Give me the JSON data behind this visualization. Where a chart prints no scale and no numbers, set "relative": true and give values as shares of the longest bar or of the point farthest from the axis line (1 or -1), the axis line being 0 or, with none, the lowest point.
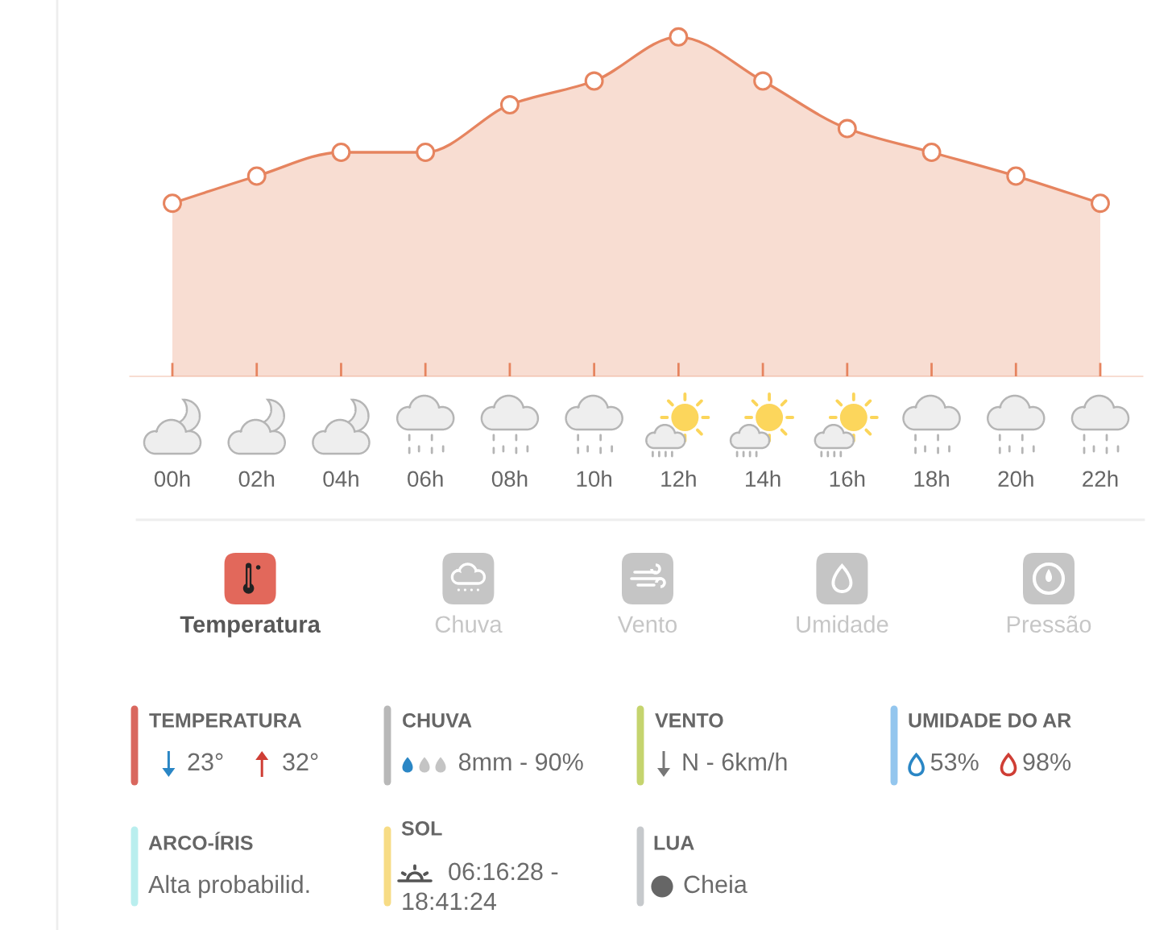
{
  "chart_data": [
    {
      "type": "area",
      "relative": true,
      "tick_labels": "x",
      "marker": "circle",
      "categories": [
        "00h",
        "02h",
        "04h",
        "06h",
        "08h",
        "10h",
        "12h",
        "14h",
        "16h",
        "18h",
        "20h",
        "22h"
      ],
      "series": [
        {
          "color": "#e6845f",
          "values": [
            0.51,
            0.59,
            0.66,
            0.66,
            0.8,
            0.87,
            1,
            0.87,
            0.73,
            0.66,
            0.59,
            0.51
          ]
        }
      ]
    },
    {
      "type": "other",
      "annotations": [
        "Temperatura",
        "Chuva",
        "Vento",
        "Umidade",
        "Pressão",
        "TEMPERATURA",
        "23°",
        "32°",
        "CHUVA",
        "8mm - 90%",
        "VENTO",
        "N - 6km/h",
        "UMIDADE DO AR",
        "53%",
        "98%",
        "ARCO-ÍRIS",
        "Alta probabilid.",
        "SOL",
        "06:16:28 - 18:41:24",
        "LUA",
        "Cheia"
      ]
    }
  ]
}
